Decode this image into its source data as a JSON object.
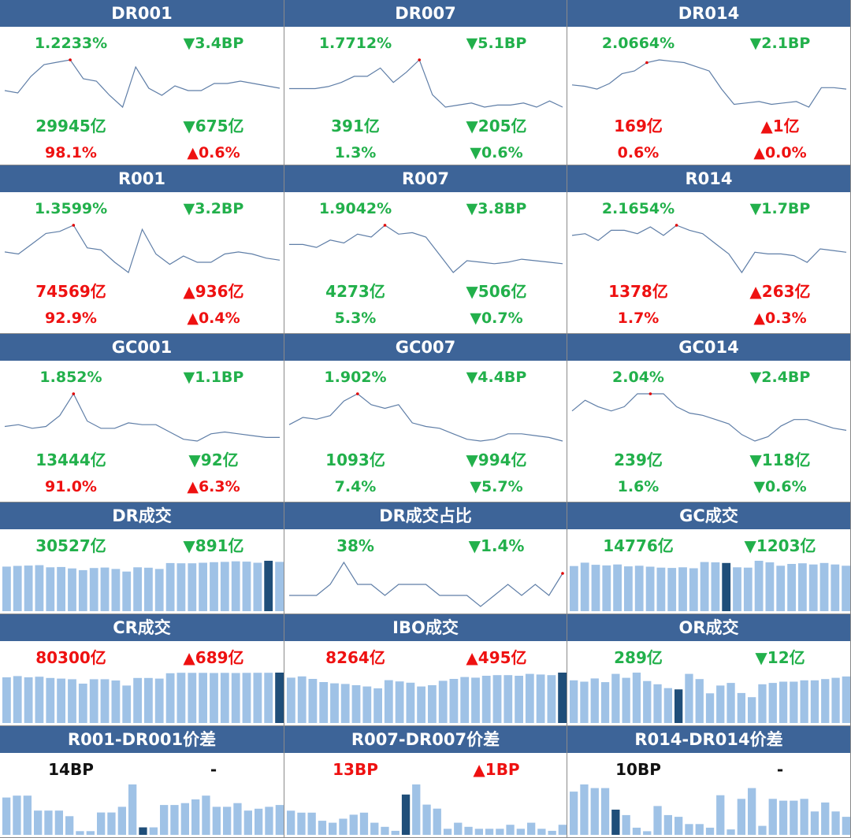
{
  "colors": {
    "header": "#3d6498",
    "up": "#ee1111",
    "down": "#22b04b",
    "neutral": "#111111",
    "line": "#5f7ea7",
    "bar": "#9fc2e6",
    "bar_highlight": "#1f4e79",
    "peak_dot": "#e00000"
  },
  "cells": [
    {
      "id": "dr001",
      "title": "DR001",
      "type": "line",
      "rows": [
        {
          "left": {
            "text": "1.2233%",
            "color": "down"
          },
          "right": {
            "text": "▼3.4BP",
            "color": "down"
          }
        },
        {
          "left": {
            "text": "29945亿",
            "color": "down"
          },
          "right": {
            "text": "▼675亿",
            "color": "down"
          }
        },
        {
          "left": {
            "text": "98.1%",
            "color": "up"
          },
          "right": {
            "text": "▲0.6%",
            "color": "up"
          }
        }
      ]
    },
    {
      "id": "dr007",
      "title": "DR007",
      "type": "line",
      "rows": [
        {
          "left": {
            "text": "1.7712%",
            "color": "down"
          },
          "right": {
            "text": "▼5.1BP",
            "color": "down"
          }
        },
        {
          "left": {
            "text": "391亿",
            "color": "down"
          },
          "right": {
            "text": "▼205亿",
            "color": "down"
          }
        },
        {
          "left": {
            "text": "1.3%",
            "color": "down"
          },
          "right": {
            "text": "▼0.6%",
            "color": "down"
          }
        }
      ]
    },
    {
      "id": "dr014",
      "title": "DR014",
      "type": "line",
      "rows": [
        {
          "left": {
            "text": "2.0664%",
            "color": "down"
          },
          "right": {
            "text": "▼2.1BP",
            "color": "down"
          }
        },
        {
          "left": {
            "text": "169亿",
            "color": "up"
          },
          "right": {
            "text": "▲1亿",
            "color": "up"
          }
        },
        {
          "left": {
            "text": "0.6%",
            "color": "up"
          },
          "right": {
            "text": "▲0.0%",
            "color": "up"
          }
        }
      ]
    },
    {
      "id": "r001",
      "title": "R001",
      "type": "line",
      "rows": [
        {
          "left": {
            "text": "1.3599%",
            "color": "down"
          },
          "right": {
            "text": "▼3.2BP",
            "color": "down"
          }
        },
        {
          "left": {
            "text": "74569亿",
            "color": "up"
          },
          "right": {
            "text": "▲936亿",
            "color": "up"
          }
        },
        {
          "left": {
            "text": "92.9%",
            "color": "up"
          },
          "right": {
            "text": "▲0.4%",
            "color": "up"
          }
        }
      ]
    },
    {
      "id": "r007",
      "title": "R007",
      "type": "line",
      "rows": [
        {
          "left": {
            "text": "1.9042%",
            "color": "down"
          },
          "right": {
            "text": "▼3.8BP",
            "color": "down"
          }
        },
        {
          "left": {
            "text": "4273亿",
            "color": "down"
          },
          "right": {
            "text": "▼506亿",
            "color": "down"
          }
        },
        {
          "left": {
            "text": "5.3%",
            "color": "down"
          },
          "right": {
            "text": "▼0.7%",
            "color": "down"
          }
        }
      ]
    },
    {
      "id": "r014",
      "title": "R014",
      "type": "line",
      "rows": [
        {
          "left": {
            "text": "2.1654%",
            "color": "down"
          },
          "right": {
            "text": "▼1.7BP",
            "color": "down"
          }
        },
        {
          "left": {
            "text": "1378亿",
            "color": "up"
          },
          "right": {
            "text": "▲263亿",
            "color": "up"
          }
        },
        {
          "left": {
            "text": "1.7%",
            "color": "up"
          },
          "right": {
            "text": "▲0.3%",
            "color": "up"
          }
        }
      ]
    },
    {
      "id": "gc001",
      "title": "GC001",
      "type": "line",
      "rows": [
        {
          "left": {
            "text": "1.852%",
            "color": "down"
          },
          "right": {
            "text": "▼1.1BP",
            "color": "down"
          }
        },
        {
          "left": {
            "text": "13444亿",
            "color": "down"
          },
          "right": {
            "text": "▼92亿",
            "color": "down"
          }
        },
        {
          "left": {
            "text": "91.0%",
            "color": "up"
          },
          "right": {
            "text": "▲6.3%",
            "color": "up"
          }
        }
      ]
    },
    {
      "id": "gc007",
      "title": "GC007",
      "type": "line",
      "rows": [
        {
          "left": {
            "text": "1.902%",
            "color": "down"
          },
          "right": {
            "text": "▼4.4BP",
            "color": "down"
          }
        },
        {
          "left": {
            "text": "1093亿",
            "color": "down"
          },
          "right": {
            "text": "▼994亿",
            "color": "down"
          }
        },
        {
          "left": {
            "text": "7.4%",
            "color": "down"
          },
          "right": {
            "text": "▼5.7%",
            "color": "down"
          }
        }
      ]
    },
    {
      "id": "gc014",
      "title": "GC014",
      "type": "line",
      "rows": [
        {
          "left": {
            "text": "2.04%",
            "color": "down"
          },
          "right": {
            "text": "▼2.4BP",
            "color": "down"
          }
        },
        {
          "left": {
            "text": "239亿",
            "color": "down"
          },
          "right": {
            "text": "▼118亿",
            "color": "down"
          }
        },
        {
          "left": {
            "text": "1.6%",
            "color": "down"
          },
          "right": {
            "text": "▼0.6%",
            "color": "down"
          }
        }
      ]
    },
    {
      "id": "dr-volume",
      "title": "DR成交",
      "type": "bar",
      "rows": [
        {
          "left": {
            "text": "30527亿",
            "color": "down"
          },
          "right": {
            "text": "▼891亿",
            "color": "down"
          }
        }
      ]
    },
    {
      "id": "dr-share",
      "title": "DR成交占比",
      "type": "line",
      "rows": [
        {
          "left": {
            "text": "38%",
            "color": "down"
          },
          "right": {
            "text": "▼1.4%",
            "color": "down"
          }
        }
      ]
    },
    {
      "id": "gc-volume",
      "title": "GC成交",
      "type": "bar",
      "rows": [
        {
          "left": {
            "text": "14776亿",
            "color": "down"
          },
          "right": {
            "text": "▼1203亿",
            "color": "down"
          }
        }
      ]
    },
    {
      "id": "cr-volume",
      "title": "CR成交",
      "type": "bar",
      "rows": [
        {
          "left": {
            "text": "80300亿",
            "color": "up"
          },
          "right": {
            "text": "▲689亿",
            "color": "up"
          }
        }
      ]
    },
    {
      "id": "ibo-volume",
      "title": "IBO成交",
      "type": "bar",
      "rows": [
        {
          "left": {
            "text": "8264亿",
            "color": "up"
          },
          "right": {
            "text": "▲495亿",
            "color": "up"
          }
        }
      ]
    },
    {
      "id": "or-volume",
      "title": "OR成交",
      "type": "bar",
      "rows": [
        {
          "left": {
            "text": "289亿",
            "color": "down"
          },
          "right": {
            "text": "▼12亿",
            "color": "down"
          }
        }
      ]
    },
    {
      "id": "r001-dr001-spread",
      "title": "R001-DR001价差",
      "type": "bar",
      "rows": [
        {
          "left": {
            "text": "14BP",
            "color": "neutral"
          },
          "right": {
            "text": "-",
            "color": "neutral"
          }
        }
      ]
    },
    {
      "id": "r007-dr007-spread",
      "title": "R007-DR007价差",
      "type": "bar",
      "rows": [
        {
          "left": {
            "text": "13BP",
            "color": "up"
          },
          "right": {
            "text": "▲1BP",
            "color": "up"
          }
        }
      ]
    },
    {
      "id": "r014-dr014-spread",
      "title": "R014-DR014价差",
      "type": "bar",
      "rows": [
        {
          "left": {
            "text": "10BP",
            "color": "neutral"
          },
          "right": {
            "text": "-",
            "color": "neutral"
          }
        }
      ]
    }
  ],
  "chart_data": [
    {
      "id": "dr001",
      "type": "line",
      "values": [
        1.32,
        1.31,
        1.38,
        1.43,
        1.44,
        1.45,
        1.37,
        1.36,
        1.3,
        1.25,
        1.42,
        1.33,
        1.3,
        1.34,
        1.32,
        1.32,
        1.35,
        1.35,
        1.36,
        1.35,
        1.34,
        1.33
      ],
      "highlight_index": 5
    },
    {
      "id": "dr007",
      "type": "line",
      "values": [
        1.86,
        1.86,
        1.86,
        1.87,
        1.89,
        1.92,
        1.92,
        1.96,
        1.89,
        1.94,
        2.0,
        1.83,
        1.77,
        1.78,
        1.79,
        1.77,
        1.78,
        1.78,
        1.79,
        1.77,
        1.8,
        1.77
      ],
      "highlight_index": 10
    },
    {
      "id": "dr014",
      "type": "line",
      "values": [
        2.23,
        2.22,
        2.2,
        2.24,
        2.31,
        2.33,
        2.39,
        2.41,
        2.4,
        2.39,
        2.36,
        2.33,
        2.2,
        2.09,
        2.1,
        2.11,
        2.09,
        2.1,
        2.11,
        2.07,
        2.21,
        2.21,
        2.2
      ],
      "highlight_index": 6
    },
    {
      "id": "r001",
      "type": "line",
      "values": [
        1.43,
        1.42,
        1.47,
        1.52,
        1.53,
        1.56,
        1.45,
        1.44,
        1.38,
        1.33,
        1.54,
        1.42,
        1.37,
        1.41,
        1.38,
        1.38,
        1.42,
        1.43,
        1.42,
        1.4,
        1.39
      ],
      "highlight_index": 5
    },
    {
      "id": "r007",
      "type": "line",
      "values": [
        2.07,
        2.07,
        2.05,
        2.1,
        2.08,
        2.14,
        2.12,
        2.2,
        2.14,
        2.15,
        2.12,
        2.0,
        1.88,
        1.96,
        1.95,
        1.94,
        1.95,
        1.97,
        1.96,
        1.95,
        1.94
      ],
      "highlight_index": 7
    },
    {
      "id": "r014",
      "type": "line",
      "values": [
        2.27,
        2.28,
        2.24,
        2.3,
        2.3,
        2.28,
        2.32,
        2.27,
        2.33,
        2.3,
        2.28,
        2.22,
        2.16,
        2.05,
        2.17,
        2.16,
        2.16,
        2.15,
        2.11,
        2.19,
        2.18,
        2.17
      ],
      "highlight_index": 8
    },
    {
      "id": "gc001",
      "type": "line",
      "values": [
        1.8,
        1.81,
        1.79,
        1.8,
        1.86,
        1.98,
        1.83,
        1.79,
        1.79,
        1.82,
        1.81,
        1.81,
        1.77,
        1.73,
        1.72,
        1.76,
        1.77,
        1.76,
        1.75,
        1.74,
        1.74
      ],
      "highlight_index": 5
    },
    {
      "id": "gc007",
      "type": "line",
      "values": [
        1.73,
        1.77,
        1.76,
        1.78,
        1.86,
        1.9,
        1.84,
        1.82,
        1.84,
        1.74,
        1.72,
        1.71,
        1.68,
        1.65,
        1.64,
        1.65,
        1.68,
        1.68,
        1.67,
        1.66,
        1.64
      ],
      "highlight_index": 5
    },
    {
      "id": "gc014",
      "type": "line",
      "values": [
        2.06,
        2.11,
        2.08,
        2.06,
        2.08,
        2.14,
        2.14,
        2.14,
        2.08,
        2.05,
        2.04,
        2.02,
        2.0,
        1.95,
        1.92,
        1.94,
        1.99,
        2.02,
        2.02,
        2.0,
        1.98,
        1.97
      ],
      "highlight_index": 6
    },
    {
      "id": "dr-volume",
      "type": "bar",
      "values": [
        31500,
        32000,
        32200,
        32500,
        31000,
        31200,
        30200,
        29000,
        30500,
        30800,
        29800,
        28000,
        31000,
        30700,
        29800,
        34000,
        33800,
        33800,
        34200,
        34600,
        34800,
        35200,
        35000,
        34200,
        35600,
        34800
      ],
      "highlight_index": 24
    },
    {
      "id": "dr-share",
      "type": "line",
      "values": [
        36,
        36,
        36,
        37,
        39,
        37,
        37,
        36,
        37,
        37,
        37,
        36,
        36,
        36,
        35,
        36,
        37,
        36,
        37,
        36,
        38
      ],
      "highlight_index": 20
    },
    {
      "id": "gc-volume",
      "type": "bar",
      "values": [
        14500,
        15600,
        14900,
        14700,
        15000,
        14400,
        14600,
        14300,
        14000,
        13900,
        14100,
        13800,
        15800,
        15700,
        15500,
        14100,
        14000,
        16200,
        15700,
        14600,
        15200,
        15400,
        15000,
        15500,
        15000,
        14600
      ],
      "highlight_index": 14
    },
    {
      "id": "cr-volume",
      "type": "bar",
      "values": [
        73000,
        75000,
        73000,
        74000,
        72000,
        71000,
        70000,
        63000,
        70000,
        70000,
        68000,
        60000,
        72000,
        72000,
        71000,
        79600,
        80400,
        80200,
        80200,
        80000,
        80200,
        80000,
        80200,
        80400,
        80300,
        80600
      ],
      "highlight_index": 25
    },
    {
      "id": "ibo-volume",
      "type": "bar",
      "values": [
        7200,
        7400,
        7000,
        6500,
        6300,
        6200,
        6000,
        5800,
        5500,
        6800,
        6600,
        6400,
        5800,
        6000,
        6700,
        7000,
        7300,
        7200,
        7500,
        7600,
        7600,
        7500,
        7800,
        7700,
        7600,
        8000
      ],
      "highlight_index": 25
    },
    {
      "id": "or-volume",
      "type": "bar",
      "values": [
        330,
        320,
        345,
        316,
        380,
        350,
        390,
        325,
        300,
        270,
        260,
        380,
        340,
        230,
        290,
        310,
        232,
        200,
        300,
        310,
        320,
        320,
        330,
        330,
        340,
        350,
        360
      ],
      "highlight_index": 10
    },
    {
      "id": "r001-dr001-spread",
      "type": "bar",
      "values": [
        20,
        21,
        21,
        13,
        13,
        13,
        10,
        2,
        2,
        12,
        12,
        15,
        27,
        4,
        4,
        16,
        16,
        17,
        19,
        21,
        15,
        15,
        17,
        13,
        14,
        15,
        16
      ],
      "highlight_index": 13
    },
    {
      "id": "r007-dr007-spread",
      "type": "bar",
      "values": [
        12,
        11,
        11,
        7,
        6,
        8,
        10,
        11,
        6,
        4,
        2,
        20,
        25,
        15,
        13,
        3,
        6,
        4,
        3,
        3,
        3,
        5,
        3,
        6,
        3,
        2,
        5
      ],
      "highlight_index": 11
    },
    {
      "id": "r014-dr014-spread",
      "type": "bar",
      "values": [
        24,
        28,
        26,
        26,
        14,
        11,
        4,
        2,
        16,
        11,
        10,
        6,
        6,
        4,
        22,
        3,
        20,
        26,
        5,
        20,
        19,
        19,
        20,
        13,
        18,
        13,
        10
      ],
      "highlight_index": 4
    }
  ]
}
